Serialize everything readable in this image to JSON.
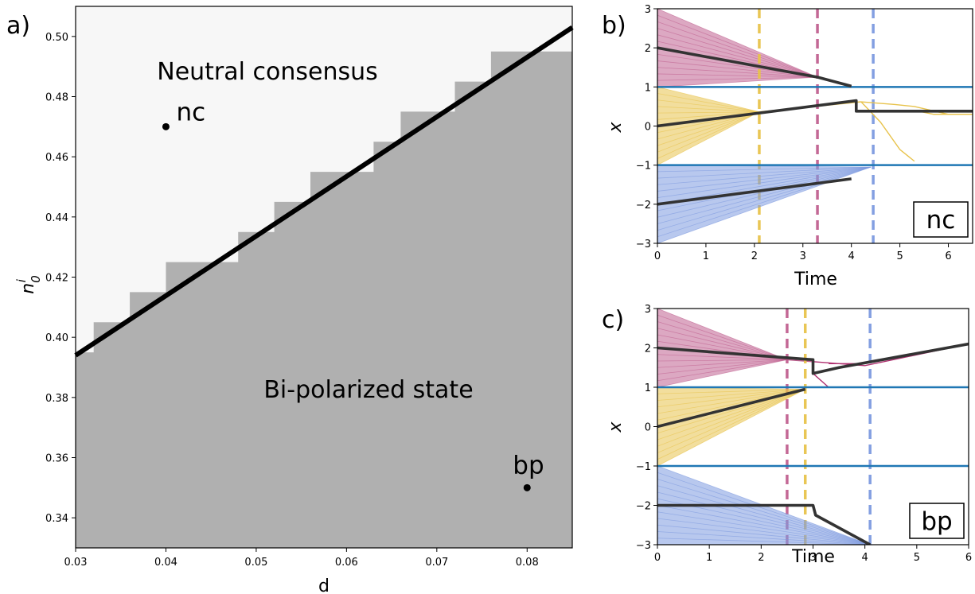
{
  "chart_data": [
    {
      "panel": "a)",
      "type": "heatmap",
      "xlabel": "d",
      "ylabel": "n_0^i",
      "xlim": [
        0.03,
        0.085
      ],
      "ylim": [
        0.33,
        0.51
      ],
      "xticks": [
        "0.03",
        "0.04",
        "0.05",
        "0.06",
        "0.07",
        "0.08"
      ],
      "yticks": [
        "0.34",
        "0.36",
        "0.38",
        "0.40",
        "0.42",
        "0.44",
        "0.46",
        "0.48",
        "0.50"
      ],
      "regions": [
        {
          "name": "Neutral consensus",
          "color": "#f7f7f7"
        },
        {
          "name": "Bi-polarized state",
          "color": "#b0b0b0"
        }
      ],
      "boundary_steps": [
        {
          "d": 0.03,
          "n": 0.395
        },
        {
          "d": 0.032,
          "n": 0.405
        },
        {
          "d": 0.036,
          "n": 0.415
        },
        {
          "d": 0.04,
          "n": 0.425
        },
        {
          "d": 0.048,
          "n": 0.435
        },
        {
          "d": 0.052,
          "n": 0.445
        },
        {
          "d": 0.056,
          "n": 0.455
        },
        {
          "d": 0.063,
          "n": 0.465
        },
        {
          "d": 0.066,
          "n": 0.475
        },
        {
          "d": 0.072,
          "n": 0.485
        },
        {
          "d": 0.076,
          "n": 0.495
        },
        {
          "d": 0.085,
          "n": 0.495
        }
      ],
      "theory_line": [
        [
          0.03,
          0.394
        ],
        [
          0.085,
          0.503
        ]
      ],
      "points": [
        {
          "label": "nc",
          "d": 0.04,
          "n": 0.47
        },
        {
          "label": "bp",
          "d": 0.08,
          "n": 0.35
        }
      ],
      "annotations": [
        "Neutral consensus",
        "Bi-polarized state"
      ]
    },
    {
      "panel": "b)",
      "type": "line",
      "box_label": "nc",
      "xlabel": "Time",
      "ylabel": "x",
      "xlim": [
        0,
        6.5
      ],
      "ylim": [
        -3,
        3
      ],
      "xticks": [
        "0",
        "1",
        "2",
        "3",
        "4",
        "5",
        "6"
      ],
      "yticks": [
        "3",
        "2",
        "1",
        "0",
        "−1",
        "−2",
        "−3"
      ],
      "thresholds": [
        1,
        -1
      ],
      "groups": [
        {
          "color": "#c06090",
          "fan_top": 3,
          "fan_bottom": 1,
          "converge": [
            3.3,
            1.25
          ],
          "tail": [
            4.0,
            1.02
          ],
          "vline": 3.3
        },
        {
          "color": "#e8c34c",
          "fan_top": 1,
          "fan_bottom": -1,
          "converge": [
            2.1,
            0.36
          ],
          "tail": [
            4.2,
            0.62
          ],
          "vline": 2.1
        },
        {
          "color": "#7d9ae0",
          "fan_top": -1,
          "fan_bottom": -3,
          "converge": [
            4.4,
            -1.05
          ],
          "tail": [
            4.4,
            -1.05
          ],
          "vline": 4.45
        }
      ],
      "mean_path": [
        [
          0,
          2
        ],
        [
          3.3,
          1.25
        ],
        [
          4.0,
          1.02
        ]
      ],
      "mean_path_2": [
        [
          0,
          0
        ],
        [
          4.1,
          0.65
        ],
        [
          4.1,
          0.38
        ],
        [
          6.5,
          0.38
        ]
      ],
      "mean_path_3": [
        [
          0,
          -2
        ],
        [
          4.0,
          -1.35
        ]
      ],
      "thin_paths": [
        {
          "color": "#e8c34c",
          "points": [
            [
              4.2,
              0.62
            ],
            [
              4.9,
              0.55
            ],
            [
              5.3,
              0.5
            ],
            [
              6.0,
              0.3
            ],
            [
              6.5,
              0.3
            ]
          ]
        },
        {
          "color": "#e8c34c",
          "points": [
            [
              4.2,
              0.62
            ],
            [
              4.6,
              0.1
            ],
            [
              5.0,
              -0.6
            ],
            [
              5.3,
              -0.9
            ]
          ]
        },
        {
          "color": "#e8c34c",
          "points": [
            [
              5.3,
              0.4
            ],
            [
              5.7,
              0.3
            ],
            [
              6.5,
              0.3
            ]
          ]
        }
      ]
    },
    {
      "panel": "c)",
      "type": "line",
      "box_label": "bp",
      "xlabel": "Time",
      "ylabel": "x",
      "xlim": [
        0,
        6
      ],
      "ylim": [
        -3,
        3
      ],
      "xticks": [
        "0",
        "1",
        "2",
        "3",
        "4",
        "5",
        "6"
      ],
      "yticks": [
        "3",
        "2",
        "1",
        "0",
        "−1",
        "−2",
        "−3"
      ],
      "thresholds": [
        1,
        -1
      ],
      "groups": [
        {
          "color": "#c06090",
          "fan_top": 3,
          "fan_bottom": 1,
          "converge": [
            2.5,
            1.7
          ],
          "tail": [
            3.0,
            1.65
          ],
          "vline": 2.5
        },
        {
          "color": "#e8c34c",
          "fan_top": 1,
          "fan_bottom": -1,
          "converge": [
            2.85,
            0.95
          ],
          "tail": [
            2.85,
            0.95
          ],
          "vline": 2.85
        },
        {
          "color": "#7d9ae0",
          "fan_top": -1,
          "fan_bottom": -3,
          "converge": [
            4.1,
            -3.0
          ],
          "tail": [
            4.1,
            -3.0
          ],
          "vline": 4.1
        }
      ],
      "mean_path": [
        [
          0,
          2
        ],
        [
          3.0,
          1.7
        ],
        [
          3.0,
          1.35
        ],
        [
          3.5,
          1.5
        ],
        [
          6.0,
          2.1
        ]
      ],
      "mean_path_2": [
        [
          0,
          0
        ],
        [
          2.85,
          0.95
        ]
      ],
      "mean_path_3": [
        [
          0,
          -2
        ],
        [
          3.0,
          -2
        ],
        [
          3.05,
          -2.25
        ],
        [
          4.1,
          -3.0
        ]
      ],
      "thin_paths": [
        {
          "color": "#b03070",
          "points": [
            [
              3.0,
              1.65
            ],
            [
              3.5,
              1.6
            ],
            [
              4.0,
              1.55
            ],
            [
              6.0,
              2.1
            ]
          ]
        },
        {
          "color": "#b03070",
          "points": [
            [
              3.0,
              1.35
            ],
            [
              3.3,
              1.0
            ]
          ]
        },
        {
          "color": "#b03070",
          "points": [
            [
              3.3,
              1.6
            ],
            [
              4.0,
              1.6
            ]
          ]
        }
      ]
    }
  ]
}
